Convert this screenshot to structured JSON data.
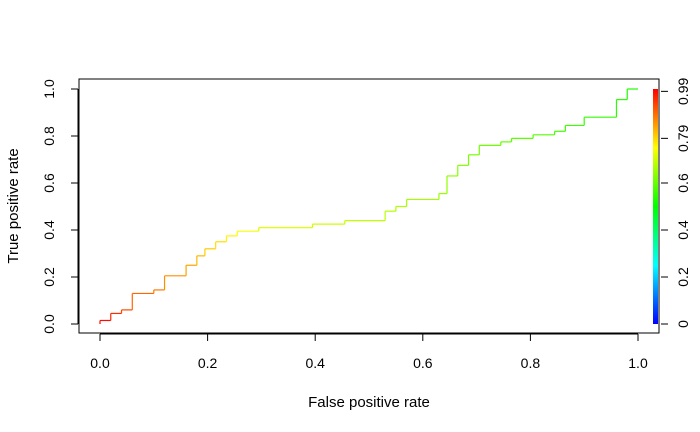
{
  "chart_data": {
    "type": "line",
    "title": "",
    "xlabel": "False positive rate",
    "ylabel": "True positive rate",
    "xlim": [
      0,
      1
    ],
    "ylim": [
      0,
      1
    ],
    "x_ticks": [
      "0.0",
      "0.2",
      "0.4",
      "0.6",
      "0.8",
      "1.0"
    ],
    "y_ticks": [
      "0.0",
      "0.2",
      "0.4",
      "0.6",
      "0.8",
      "1.0"
    ],
    "grid": false,
    "legend": "none",
    "colorbar": {
      "placement": "right",
      "ticks": [
        {
          "label": "0",
          "value": 0
        },
        {
          "label": "0.2",
          "value": 0.2
        },
        {
          "label": "0.4",
          "value": 0.4
        },
        {
          "label": "0.6",
          "value": 0.6
        },
        {
          "label": "0.79",
          "value": 0.79
        },
        {
          "label": "0.99",
          "value": 0.99
        }
      ],
      "range": [
        0,
        1
      ],
      "colors": [
        "#0000ff",
        "#00ffff",
        "#00ff00",
        "#ffff00",
        "#ff0000"
      ]
    },
    "series": [
      {
        "style": "step",
        "points": [
          [
            0.0,
            0.0
          ],
          [
            0.0,
            0.015
          ],
          [
            0.02,
            0.015
          ],
          [
            0.02,
            0.045
          ],
          [
            0.04,
            0.045
          ],
          [
            0.04,
            0.06
          ],
          [
            0.06,
            0.06
          ],
          [
            0.06,
            0.13
          ],
          [
            0.1,
            0.13
          ],
          [
            0.1,
            0.145
          ],
          [
            0.12,
            0.145
          ],
          [
            0.12,
            0.205
          ],
          [
            0.16,
            0.205
          ],
          [
            0.16,
            0.25
          ],
          [
            0.18,
            0.25
          ],
          [
            0.18,
            0.29
          ],
          [
            0.195,
            0.29
          ],
          [
            0.195,
            0.32
          ],
          [
            0.215,
            0.32
          ],
          [
            0.215,
            0.35
          ],
          [
            0.235,
            0.35
          ],
          [
            0.235,
            0.375
          ],
          [
            0.255,
            0.375
          ],
          [
            0.255,
            0.395
          ],
          [
            0.295,
            0.395
          ],
          [
            0.295,
            0.41
          ],
          [
            0.395,
            0.41
          ],
          [
            0.395,
            0.425
          ],
          [
            0.455,
            0.425
          ],
          [
            0.455,
            0.44
          ],
          [
            0.53,
            0.44
          ],
          [
            0.53,
            0.48
          ],
          [
            0.55,
            0.48
          ],
          [
            0.55,
            0.5
          ],
          [
            0.57,
            0.5
          ],
          [
            0.57,
            0.53
          ],
          [
            0.63,
            0.53
          ],
          [
            0.63,
            0.555
          ],
          [
            0.645,
            0.555
          ],
          [
            0.645,
            0.63
          ],
          [
            0.665,
            0.63
          ],
          [
            0.665,
            0.675
          ],
          [
            0.685,
            0.675
          ],
          [
            0.685,
            0.72
          ],
          [
            0.705,
            0.72
          ],
          [
            0.705,
            0.76
          ],
          [
            0.745,
            0.76
          ],
          [
            0.745,
            0.775
          ],
          [
            0.765,
            0.775
          ],
          [
            0.765,
            0.79
          ],
          [
            0.805,
            0.79
          ],
          [
            0.805,
            0.805
          ],
          [
            0.845,
            0.805
          ],
          [
            0.845,
            0.82
          ],
          [
            0.865,
            0.82
          ],
          [
            0.865,
            0.845
          ],
          [
            0.9,
            0.845
          ],
          [
            0.9,
            0.88
          ],
          [
            0.96,
            0.88
          ],
          [
            0.96,
            0.955
          ],
          [
            0.98,
            0.955
          ],
          [
            0.98,
            1.0
          ],
          [
            1.0,
            1.0
          ]
        ],
        "cutoffs": [
          0.99,
          0.96,
          0.93,
          0.9,
          0.88,
          0.86,
          0.84,
          0.82,
          0.8,
          0.78,
          0.76,
          0.74,
          0.72,
          0.7,
          0.69,
          0.68,
          0.67,
          0.66,
          0.65,
          0.64,
          0.63,
          0.62,
          0.61,
          0.6,
          0.59,
          0.58,
          0.57,
          0.56,
          0.55,
          0.54,
          0.53,
          0.52,
          0.51,
          0.5,
          0.49,
          0.48,
          0.47,
          0.46,
          0.45,
          0.44,
          0.43,
          0.42,
          0.41,
          0.4,
          0.39,
          0.38,
          0.37,
          0.36,
          0.35,
          0.34,
          0.33,
          0.32,
          0.31,
          0.3,
          0.28,
          0.26,
          0.24,
          0.22,
          0.2,
          0.15,
          0.1,
          0.05,
          0.02
        ]
      }
    ]
  }
}
